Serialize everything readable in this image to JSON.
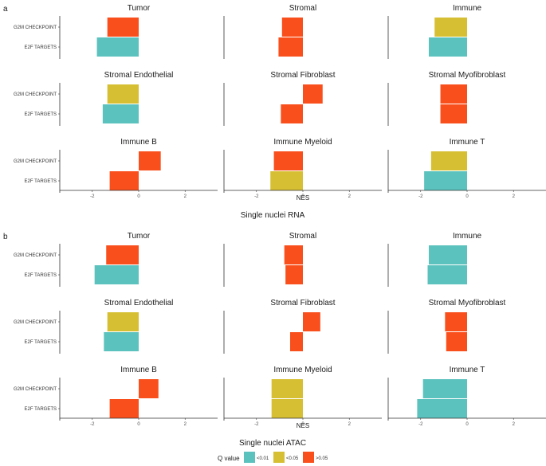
{
  "legend": {
    "title": "Q value",
    "items": [
      {
        "label": "<0.01",
        "color": "#5BC2BE"
      },
      {
        "label": "<0.05",
        "color": "#D6BF33"
      },
      {
        "label": ">0.05",
        "color": "#F94F1C"
      }
    ]
  },
  "chart_data": [
    {
      "panel": "a",
      "type": "bar",
      "orientation": "horizontal",
      "title": "Single nuclei RNA",
      "xlabel": "NES",
      "xlim": [
        -3.4,
        3.4
      ],
      "xticks": [
        -2,
        0,
        2
      ],
      "categories": [
        "G2M CHECKPOINT",
        "E2F TARGETS"
      ],
      "facets": [
        {
          "name": "Tumor",
          "values": [
            -1.35,
            -1.8
          ],
          "q": [
            "gt005",
            "lt001"
          ]
        },
        {
          "name": "Stromal",
          "values": [
            -0.9,
            -1.05
          ],
          "q": [
            "gt005",
            "gt005"
          ]
        },
        {
          "name": "Immune",
          "values": [
            -1.4,
            -1.65
          ],
          "q": [
            "lt005",
            "lt001"
          ]
        },
        {
          "name": "Stromal Endothelial",
          "values": [
            -1.35,
            -1.55
          ],
          "q": [
            "lt005",
            "lt001"
          ]
        },
        {
          "name": "Stromal Fibroblast",
          "values": [
            0.85,
            -0.95
          ],
          "q": [
            "gt005",
            "gt005"
          ]
        },
        {
          "name": "Stromal Myofibroblast",
          "values": [
            -1.15,
            -1.15
          ],
          "q": [
            "gt005",
            "gt005"
          ]
        },
        {
          "name": "Immune B",
          "values": [
            0.95,
            -1.25
          ],
          "q": [
            "gt005",
            "gt005"
          ]
        },
        {
          "name": "Immune Myeloid",
          "values": [
            -1.25,
            -1.4
          ],
          "q": [
            "gt005",
            "lt005"
          ]
        },
        {
          "name": "Immune T",
          "values": [
            -1.55,
            -1.85
          ],
          "q": [
            "lt005",
            "lt001"
          ]
        }
      ]
    },
    {
      "panel": "b",
      "type": "bar",
      "orientation": "horizontal",
      "title": "Single nuclei ATAC",
      "xlabel": "NES",
      "xlim": [
        -3.4,
        3.4
      ],
      "xticks": [
        -2,
        0,
        2
      ],
      "categories": [
        "G2M CHECKPOINT",
        "E2F TARGETS"
      ],
      "facets": [
        {
          "name": "Tumor",
          "values": [
            -1.4,
            -1.9
          ],
          "q": [
            "gt005",
            "lt001"
          ]
        },
        {
          "name": "Stromal",
          "values": [
            -0.8,
            -0.75
          ],
          "q": [
            "gt005",
            "gt005"
          ]
        },
        {
          "name": "Immune",
          "values": [
            -1.65,
            -1.7
          ],
          "q": [
            "lt001",
            "lt001"
          ]
        },
        {
          "name": "Stromal Endothelial",
          "values": [
            -1.35,
            -1.5
          ],
          "q": [
            "lt005",
            "lt001"
          ]
        },
        {
          "name": "Stromal Fibroblast",
          "values": [
            0.75,
            -0.55
          ],
          "q": [
            "gt005",
            "gt005"
          ]
        },
        {
          "name": "Stromal Myofibroblast",
          "values": [
            -0.95,
            -0.9
          ],
          "q": [
            "gt005",
            "gt005"
          ]
        },
        {
          "name": "Immune B",
          "values": [
            0.85,
            -1.25
          ],
          "q": [
            "gt005",
            "gt005"
          ]
        },
        {
          "name": "Immune Myeloid",
          "values": [
            -1.35,
            -1.35
          ],
          "q": [
            "lt005",
            "lt005"
          ]
        },
        {
          "name": "Immune T",
          "values": [
            -1.9,
            -2.15
          ],
          "q": [
            "lt001",
            "lt001"
          ]
        }
      ]
    }
  ]
}
